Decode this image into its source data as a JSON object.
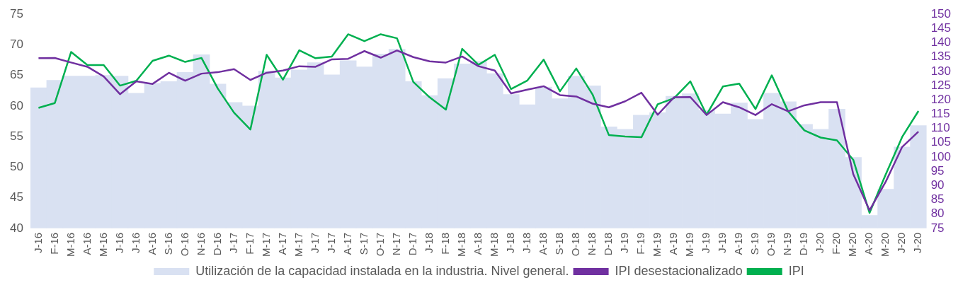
{
  "chart_data": {
    "type": "line",
    "categories": [
      "J-16",
      "F-16",
      "M-16",
      "A-16",
      "M-16",
      "J-16",
      "J-16",
      "A-16",
      "S-16",
      "O-16",
      "N-16",
      "D-16",
      "J-17",
      "F-17",
      "M-17",
      "A-17",
      "M-17",
      "J-17",
      "J-17",
      "A-17",
      "S-17",
      "O-17",
      "N-17",
      "D-17",
      "J-18",
      "F-18",
      "M-18",
      "A-18",
      "M-18",
      "J-18",
      "J-18",
      "A-18",
      "S-18",
      "O-18",
      "N-18",
      "D-18",
      "J-19",
      "F-19",
      "M-19",
      "A-19",
      "M-19",
      "J-19",
      "J-19",
      "A-19",
      "S-19",
      "O-19",
      "N-19",
      "D-19",
      "J-20",
      "F-20",
      "M-20",
      "A-20",
      "M-20",
      "J-20",
      "J-20"
    ],
    "series": [
      {
        "name": "Utilización de la capacidad instalada en la industria. Nivel general.",
        "type": "bar",
        "color": "#d9e1f2",
        "values": [
          63.0,
          64.2,
          64.9,
          64.9,
          65.0,
          64.9,
          62.1,
          63.7,
          64.0,
          65.5,
          68.4,
          63.6,
          60.6,
          60.0,
          65.7,
          64.6,
          65.9,
          67.1,
          65.1,
          67.4,
          66.4,
          68.5,
          69.3,
          64.0,
          61.7,
          64.5,
          66.9,
          67.3,
          65.3,
          61.9,
          60.2,
          63.1,
          61.2,
          64.9,
          63.3,
          56.6,
          56.2,
          58.5,
          58.9,
          61.6,
          62.0,
          59.3,
          58.7,
          60.5,
          57.8,
          62.1,
          60.7,
          57.0,
          56.2,
          59.5,
          51.6,
          42.1,
          46.4,
          53.3,
          56.8
        ]
      },
      {
        "name": "IPI desestacionalizado",
        "axis": "y2",
        "color": "#7030a0",
        "values": [
          134.6,
          134.7,
          133.1,
          131.6,
          128.2,
          122.0,
          126.5,
          125.6,
          129.5,
          126.7,
          129.2,
          129.7,
          130.8,
          127.0,
          129.5,
          130.3,
          131.8,
          131.6,
          134.2,
          134.4,
          137.1,
          134.8,
          137.3,
          135.0,
          133.5,
          133.1,
          135.2,
          131.8,
          130.3,
          122.3,
          123.6,
          124.8,
          121.7,
          121.2,
          118.7,
          117.4,
          119.5,
          122.5,
          114.8,
          120.9,
          121.0,
          114.7,
          119.2,
          117.4,
          114.7,
          118.5,
          116.0,
          118.1,
          119.2,
          119.2,
          94.0,
          81.3,
          91.4,
          103.5,
          108.9
        ]
      },
      {
        "name": "IPI",
        "axis": "y2",
        "color": "#00b050",
        "values": [
          117.2,
          118.9,
          136.8,
          132.2,
          132.2,
          125.0,
          126.7,
          133.7,
          135.5,
          133.3,
          134.7,
          124.0,
          115.5,
          109.6,
          135.8,
          127.1,
          137.4,
          134.6,
          135.2,
          143.0,
          140.6,
          143.0,
          141.6,
          126.3,
          120.9,
          116.6,
          137.9,
          132.3,
          135.8,
          123.8,
          126.8,
          134.1,
          123.0,
          131.0,
          121.9,
          107.7,
          107.2,
          106.9,
          118.5,
          120.6,
          126.5,
          114.8,
          124.7,
          125.7,
          116.8,
          128.6,
          116.0,
          109.3,
          106.8,
          105.8,
          99.0,
          80.4,
          94.0,
          107.0,
          116.1
        ]
      }
    ],
    "ylim": [
      40,
      75
    ],
    "yticks": [
      40,
      45,
      50,
      55,
      60,
      65,
      70,
      75
    ],
    "y2lim": [
      75,
      150
    ],
    "y2ticks": [
      75,
      80,
      85,
      90,
      95,
      100,
      105,
      110,
      115,
      120,
      125,
      130,
      135,
      140,
      145,
      150
    ],
    "grid": false,
    "legend": "bottom",
    "marker": "none",
    "line_style": "solid"
  }
}
